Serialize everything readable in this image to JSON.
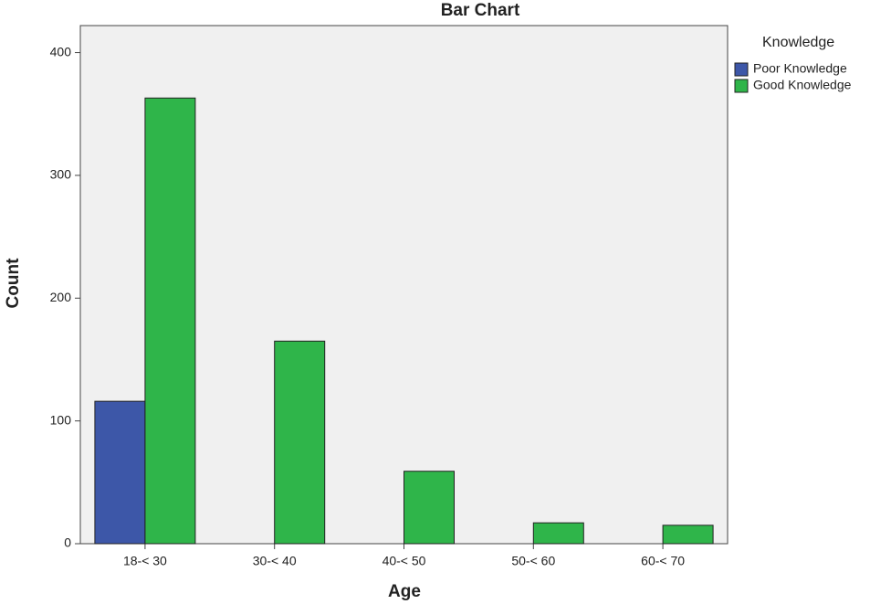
{
  "chart_data": {
    "type": "bar",
    "title": "Bar Chart",
    "x_label": "Age",
    "y_label": "Count",
    "legend_title": "Knowledge",
    "categories": [
      "18-< 30",
      "30-< 40",
      "40-< 50",
      "50-< 60",
      "60-< 70"
    ],
    "series": [
      {
        "name": "Poor Knowledge",
        "color": "#3d57a8",
        "values": [
          116,
          0,
          0,
          0,
          0
        ]
      },
      {
        "name": "Good Knowledge",
        "color": "#2fb54a",
        "values": [
          363,
          165,
          59,
          17,
          15
        ]
      }
    ],
    "ylim": [
      0,
      422
    ],
    "yticks": [
      0,
      100,
      200,
      300,
      400
    ],
    "legend": "right"
  }
}
